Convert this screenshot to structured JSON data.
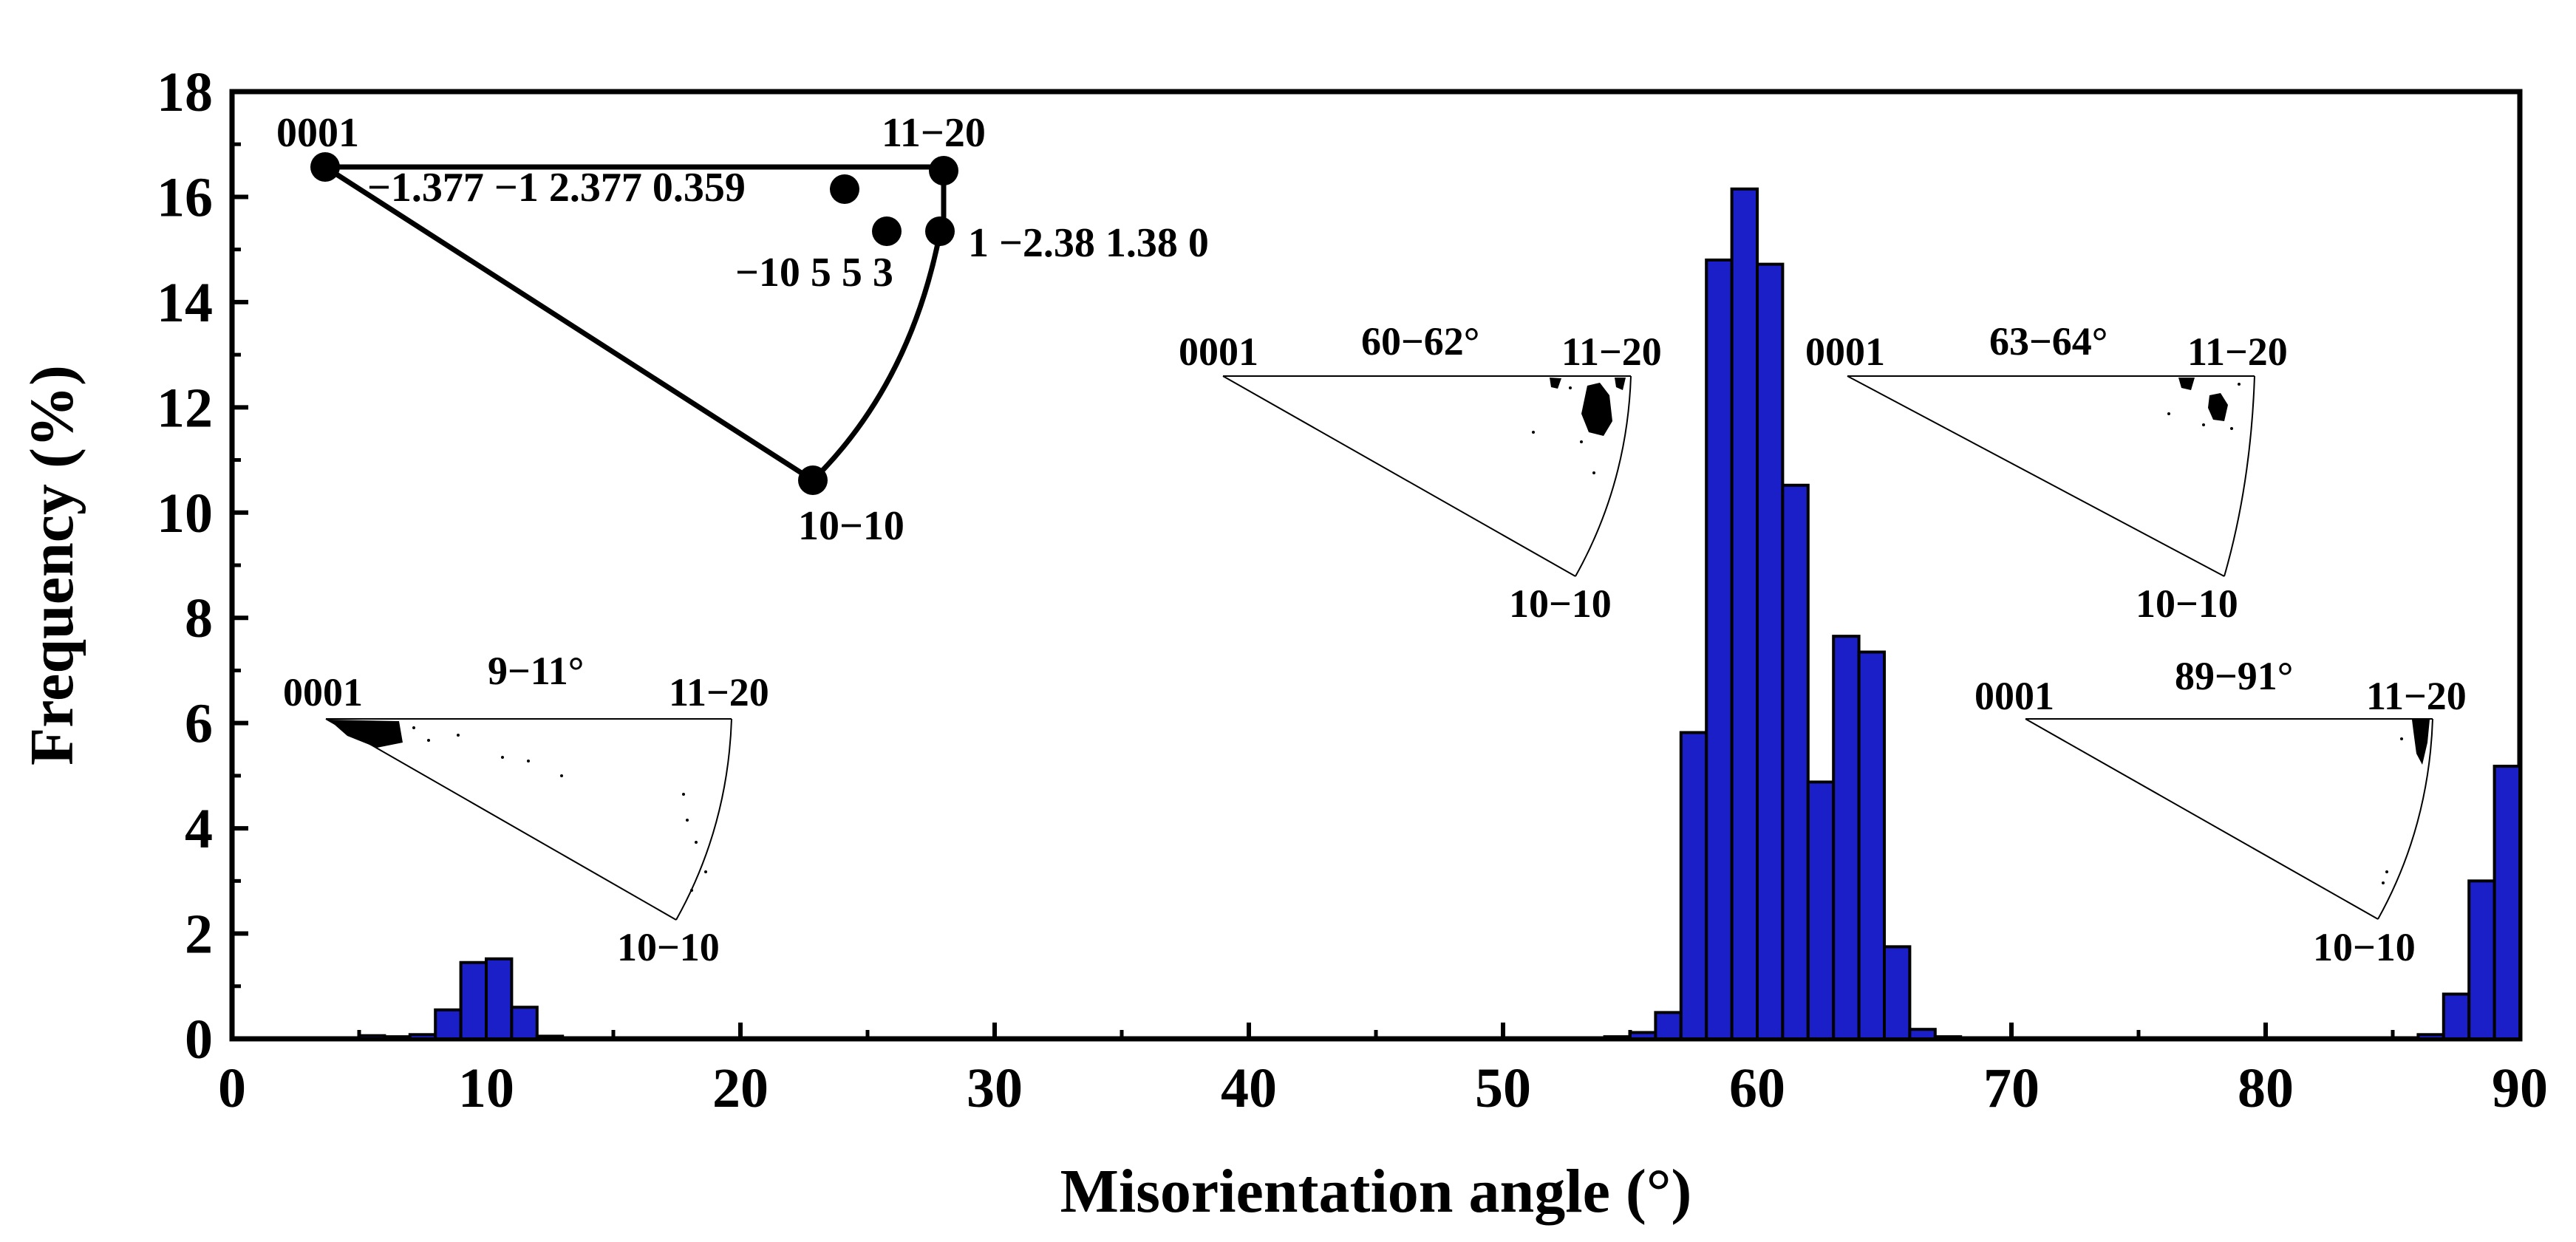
{
  "chart_data": {
    "type": "bar",
    "xlabel": "Misorientation angle (°)",
    "ylabel": "Frequency (%)",
    "xlim": [
      0,
      90
    ],
    "ylim": [
      0,
      18
    ],
    "xticks": [
      0,
      10,
      20,
      30,
      40,
      50,
      60,
      70,
      80,
      90
    ],
    "yticks": [
      0,
      2,
      4,
      6,
      8,
      10,
      12,
      14,
      16,
      18
    ],
    "bar_width_deg": 1,
    "bar_color": "#1a1fc8",
    "bars": [
      {
        "x": 5.5,
        "y": 0.06
      },
      {
        "x": 6.5,
        "y": 0.04
      },
      {
        "x": 7.5,
        "y": 0.08
      },
      {
        "x": 8.5,
        "y": 0.55
      },
      {
        "x": 9.5,
        "y": 1.45
      },
      {
        "x": 10.5,
        "y": 1.52
      },
      {
        "x": 11.5,
        "y": 0.6
      },
      {
        "x": 12.5,
        "y": 0.05
      },
      {
        "x": 52.5,
        "y": 0.02
      },
      {
        "x": 53.5,
        "y": 0.02
      },
      {
        "x": 54.5,
        "y": 0.04
      },
      {
        "x": 55.5,
        "y": 0.12
      },
      {
        "x": 56.5,
        "y": 0.5
      },
      {
        "x": 57.5,
        "y": 5.82
      },
      {
        "x": 58.5,
        "y": 14.8
      },
      {
        "x": 59.5,
        "y": 16.15
      },
      {
        "x": 60.5,
        "y": 14.72
      },
      {
        "x": 61.5,
        "y": 10.52
      },
      {
        "x": 62.5,
        "y": 4.88
      },
      {
        "x": 63.5,
        "y": 7.65
      },
      {
        "x": 64.5,
        "y": 7.35
      },
      {
        "x": 65.5,
        "y": 1.75
      },
      {
        "x": 66.5,
        "y": 0.18
      },
      {
        "x": 67.5,
        "y": 0.04
      },
      {
        "x": 86.5,
        "y": 0.08
      },
      {
        "x": 87.5,
        "y": 0.85
      },
      {
        "x": 88.5,
        "y": 3.0
      },
      {
        "x": 89.5,
        "y": 5.18
      }
    ],
    "annotations": {
      "main_triangle": {
        "corner_0001": "0001",
        "corner_11_20": "11−20",
        "corner_10_10": "10−10",
        "axis_a": "−1.377 −1 2.377 0.359",
        "axis_b": "−10 5 5 3",
        "axis_c": "1 −2.38 1.38 0"
      },
      "inset_9_11": {
        "range": "9−11°",
        "corner_0001": "0001",
        "corner_11_20": "11−20",
        "corner_10_10": "10−10"
      },
      "inset_60_62": {
        "range": "60−62°",
        "corner_0001": "0001",
        "corner_11_20": "11−20",
        "corner_10_10": "10−10"
      },
      "inset_63_64": {
        "range": "63−64°",
        "corner_0001": "0001",
        "corner_11_20": "11−20",
        "corner_10_10": "10−10"
      },
      "inset_89_91": {
        "range": "89−91°",
        "corner_0001": "0001",
        "corner_11_20": "11−20",
        "corner_10_10": "10−10"
      }
    }
  }
}
